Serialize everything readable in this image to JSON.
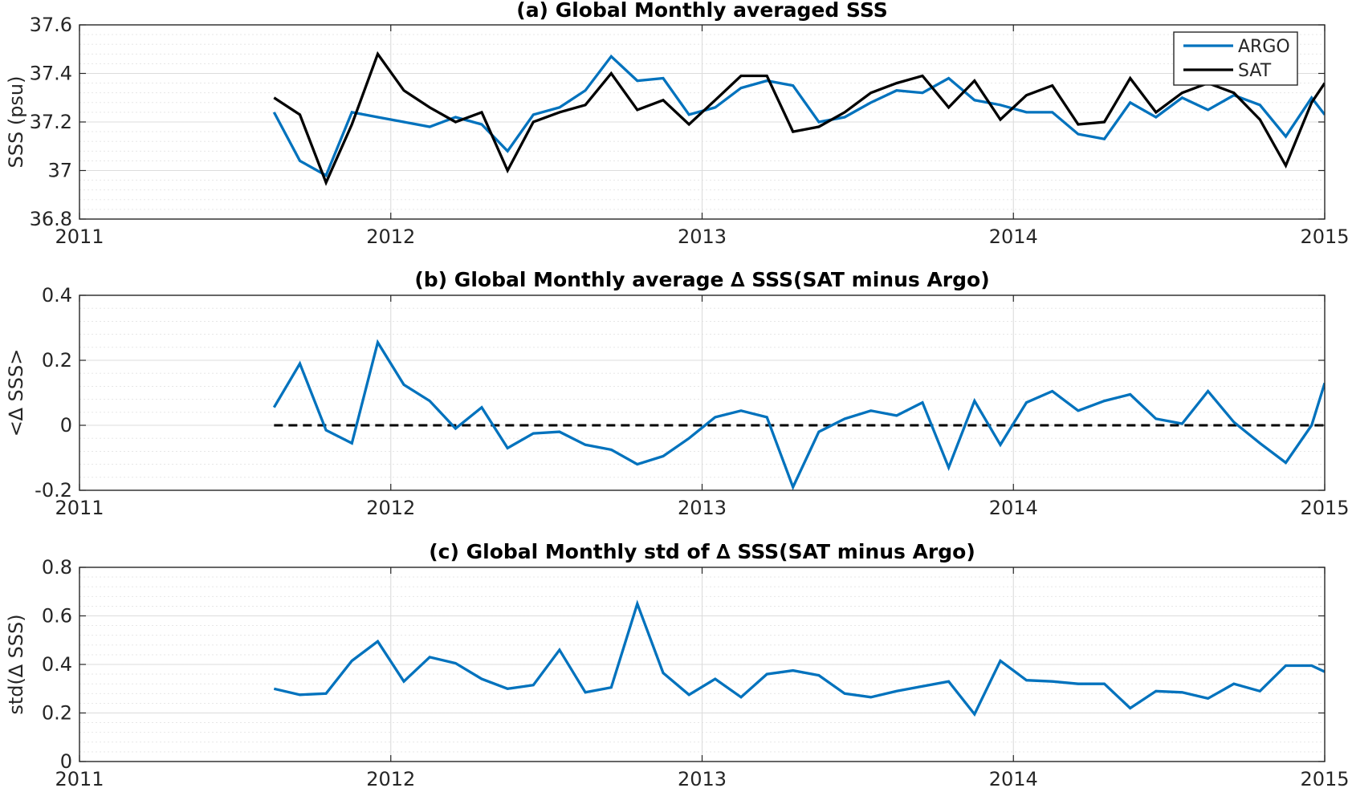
{
  "colors": {
    "argo": "#0072BD",
    "sat": "#000000",
    "zero_line": "#000000"
  },
  "chart_data": [
    {
      "type": "line",
      "title": "(a) Global Monthly averaged SSS",
      "xlabel": "",
      "ylabel": "SSS (psu)",
      "xlim": [
        2011,
        2015
      ],
      "ylim": [
        36.8,
        37.6
      ],
      "xticks": [
        2011,
        2012,
        2013,
        2014,
        2015
      ],
      "xtick_labels": [
        "2011",
        "2012",
        "2013",
        "2014",
        "2015"
      ],
      "yticks": [
        36.8,
        37.0,
        37.2,
        37.4,
        37.6
      ],
      "ytick_labels": [
        "36.8",
        "37",
        "37.2",
        "37.4",
        "37.6"
      ],
      "minor_grid": true,
      "legend": "top-right",
      "x": [
        2011.625,
        2011.708,
        2011.792,
        2011.875,
        2011.958,
        2012.042,
        2012.125,
        2012.208,
        2012.292,
        2012.375,
        2012.458,
        2012.542,
        2012.625,
        2012.708,
        2012.792,
        2012.875,
        2012.958,
        2013.042,
        2013.125,
        2013.208,
        2013.292,
        2013.375,
        2013.458,
        2013.542,
        2013.625,
        2013.708,
        2013.792,
        2013.875,
        2013.958,
        2014.042,
        2014.125,
        2014.208,
        2014.292,
        2014.375,
        2014.458,
        2014.542,
        2014.625,
        2014.708,
        2014.792,
        2014.875,
        2014.958,
        2015.0
      ],
      "series": [
        {
          "name": "ARGO",
          "color": "#0072BD",
          "values": [
            37.24,
            37.04,
            36.98,
            37.24,
            37.22,
            37.2,
            37.18,
            37.22,
            37.19,
            37.08,
            37.23,
            37.26,
            37.33,
            37.47,
            37.37,
            37.38,
            37.23,
            37.26,
            37.34,
            37.37,
            37.35,
            37.2,
            37.22,
            37.28,
            37.33,
            37.32,
            37.38,
            37.29,
            37.27,
            37.24,
            37.24,
            37.15,
            37.13,
            37.28,
            37.22,
            37.3,
            37.25,
            37.31,
            37.27,
            37.14,
            37.3,
            37.23
          ]
        },
        {
          "name": "SAT",
          "color": "#000000",
          "values": [
            37.3,
            37.23,
            36.95,
            37.19,
            37.48,
            37.33,
            37.26,
            37.2,
            37.24,
            37.0,
            37.2,
            37.24,
            37.27,
            37.4,
            37.25,
            37.29,
            37.19,
            37.29,
            37.39,
            37.39,
            37.16,
            37.18,
            37.24,
            37.32,
            37.36,
            37.39,
            37.26,
            37.37,
            37.21,
            37.31,
            37.35,
            37.19,
            37.2,
            37.38,
            37.24,
            37.32,
            37.36,
            37.32,
            37.21,
            37.02,
            37.28,
            37.36
          ]
        }
      ]
    },
    {
      "type": "line",
      "title": "(b) Global Monthly average ∆ SSS(SAT minus Argo)",
      "xlabel": "",
      "ylabel": "<∆ SSS>",
      "xlim": [
        2011,
        2015
      ],
      "ylim": [
        -0.2,
        0.4
      ],
      "xticks": [
        2011,
        2012,
        2013,
        2014,
        2015
      ],
      "xtick_labels": [
        "2011",
        "2012",
        "2013",
        "2014",
        "2015"
      ],
      "yticks": [
        -0.2,
        0,
        0.2,
        0.4
      ],
      "ytick_labels": [
        "-0.2",
        "0",
        "0.2",
        "0.4"
      ],
      "minor_grid": true,
      "reference_line": {
        "y": 0,
        "style": "dashed",
        "x_from": 2011.625,
        "x_to": 2015.0
      },
      "x": [
        2011.625,
        2011.708,
        2011.792,
        2011.875,
        2011.958,
        2012.042,
        2012.125,
        2012.208,
        2012.292,
        2012.375,
        2012.458,
        2012.542,
        2012.625,
        2012.708,
        2012.792,
        2012.875,
        2012.958,
        2013.042,
        2013.125,
        2013.208,
        2013.292,
        2013.375,
        2013.458,
        2013.542,
        2013.625,
        2013.708,
        2013.792,
        2013.875,
        2013.958,
        2014.042,
        2014.125,
        2014.208,
        2014.292,
        2014.375,
        2014.458,
        2014.542,
        2014.625,
        2014.708,
        2014.792,
        2014.875,
        2014.958,
        2015.0
      ],
      "series": [
        {
          "color": "#0072BD",
          "values": [
            0.055,
            0.19,
            -0.015,
            -0.055,
            0.255,
            0.125,
            0.075,
            -0.01,
            0.055,
            -0.07,
            -0.025,
            -0.02,
            -0.06,
            -0.075,
            -0.12,
            -0.095,
            -0.04,
            0.025,
            0.045,
            0.025,
            -0.19,
            -0.02,
            0.02,
            0.045,
            0.03,
            0.07,
            -0.13,
            0.075,
            -0.06,
            0.07,
            0.105,
            0.045,
            0.075,
            0.095,
            0.02,
            0.005,
            0.105,
            0.01,
            -0.055,
            -0.115,
            0.0,
            0.13
          ]
        }
      ]
    },
    {
      "type": "line",
      "title": "(c) Global Monthly std of ∆ SSS(SAT minus Argo)",
      "xlabel": "",
      "ylabel": "std(∆ SSS)",
      "xlim": [
        2011,
        2015
      ],
      "ylim": [
        0,
        0.8
      ],
      "xticks": [
        2011,
        2012,
        2013,
        2014,
        2015
      ],
      "xtick_labels": [
        "2011",
        "2012",
        "2013",
        "2014",
        "2015"
      ],
      "yticks": [
        0,
        0.2,
        0.4,
        0.6,
        0.8
      ],
      "ytick_labels": [
        "0",
        "0.2",
        "0.4",
        "0.6",
        "0.8"
      ],
      "minor_grid": true,
      "x": [
        2011.625,
        2011.708,
        2011.792,
        2011.875,
        2011.958,
        2012.042,
        2012.125,
        2012.208,
        2012.292,
        2012.375,
        2012.458,
        2012.542,
        2012.625,
        2012.708,
        2012.792,
        2012.875,
        2012.958,
        2013.042,
        2013.125,
        2013.208,
        2013.292,
        2013.375,
        2013.458,
        2013.542,
        2013.625,
        2013.708,
        2013.792,
        2013.875,
        2013.958,
        2014.042,
        2014.125,
        2014.208,
        2014.292,
        2014.375,
        2014.458,
        2014.542,
        2014.625,
        2014.708,
        2014.792,
        2014.875,
        2014.958,
        2015.0
      ],
      "series": [
        {
          "color": "#0072BD",
          "values": [
            0.3,
            0.275,
            0.28,
            0.415,
            0.495,
            0.33,
            0.43,
            0.405,
            0.34,
            0.3,
            0.315,
            0.46,
            0.285,
            0.305,
            0.65,
            0.365,
            0.275,
            0.34,
            0.265,
            0.36,
            0.375,
            0.355,
            0.28,
            0.265,
            0.29,
            0.31,
            0.33,
            0.195,
            0.415,
            0.335,
            0.33,
            0.32,
            0.32,
            0.22,
            0.29,
            0.285,
            0.26,
            0.32,
            0.29,
            0.395,
            0.395,
            0.37
          ]
        }
      ]
    }
  ]
}
